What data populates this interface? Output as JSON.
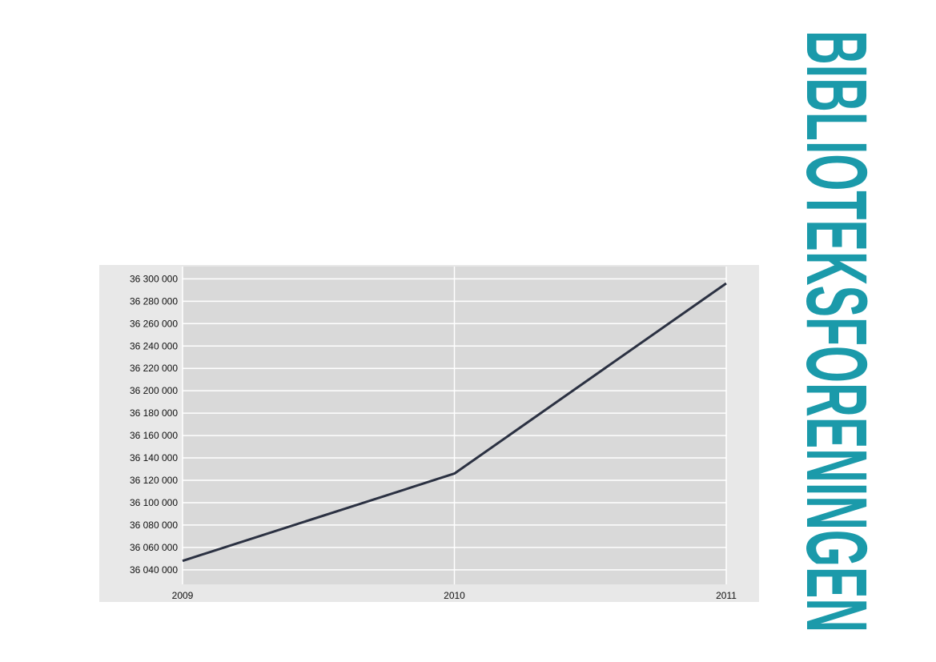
{
  "chart_data": {
    "type": "line",
    "x": [
      2009,
      2010,
      2011
    ],
    "series": [
      {
        "color": "#2b3142",
        "values": [
          36048000,
          36126000,
          36296000
        ]
      }
    ],
    "xlim": [
      2009,
      2011
    ],
    "xticks": [
      2009,
      2010,
      2011
    ],
    "ylim": [
      36027000,
      36311000
    ],
    "yticks": [
      {
        "value": 36040000,
        "label": "36 040 000"
      },
      {
        "value": 36060000,
        "label": "36 060 000"
      },
      {
        "value": 36080000,
        "label": "36 080 000"
      },
      {
        "value": 36100000,
        "label": "36 100 000"
      },
      {
        "value": 36120000,
        "label": "36 120 000"
      },
      {
        "value": 36140000,
        "label": "36 140 000"
      },
      {
        "value": 36160000,
        "label": "36 160 000"
      },
      {
        "value": 36180000,
        "label": "36 180 000"
      },
      {
        "value": 36200000,
        "label": "36 200 000"
      },
      {
        "value": 36220000,
        "label": "36 220 000"
      },
      {
        "value": 36240000,
        "label": "36 240 000"
      },
      {
        "value": 36260000,
        "label": "36 260 000"
      },
      {
        "value": 36280000,
        "label": "36 280 000"
      },
      {
        "value": 36300000,
        "label": "36 300 000"
      }
    ],
    "grid": true
  },
  "logo_text": "BIBLIOTEKSFORENINGEN"
}
